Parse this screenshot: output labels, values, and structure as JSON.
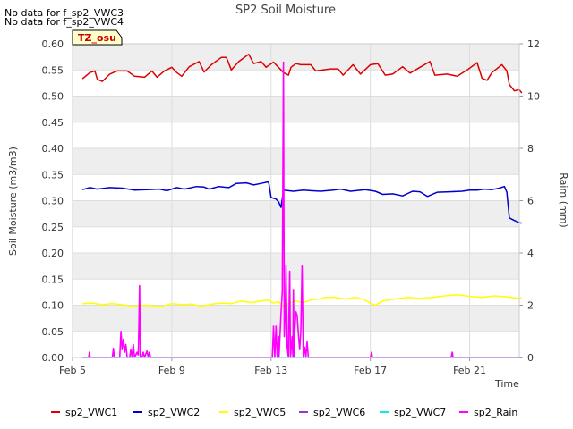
{
  "notes": [
    "No data for f_sp2_VWC3",
    "No data for f_sp2_VWC4"
  ],
  "badge": "TZ_osu",
  "chart_data": {
    "type": "line",
    "title": "SP2 Soil Moisture",
    "xlabel": "Time",
    "ylabel": "Soil Moisture (m3/m3)",
    "y2label": "Raim (mm)",
    "xlim": [
      5.0,
      23.0
    ],
    "ylim": [
      0.0,
      0.6
    ],
    "y2lim": [
      0,
      12
    ],
    "x_ticks": [
      {
        "x": 5.0,
        "label": "Feb 5"
      },
      {
        "x": 9.0,
        "label": "Feb 9"
      },
      {
        "x": 13.0,
        "label": "Feb 13"
      },
      {
        "x": 17.0,
        "label": "Feb 17"
      },
      {
        "x": 21.0,
        "label": "Feb 21"
      }
    ],
    "y_ticks": [
      "0.00",
      "0.05",
      "0.10",
      "0.15",
      "0.20",
      "0.25",
      "0.30",
      "0.35",
      "0.40",
      "0.45",
      "0.50",
      "0.55",
      "0.60"
    ],
    "y2_ticks": [
      "0",
      "2",
      "4",
      "6",
      "8",
      "10",
      "12"
    ],
    "grid": true,
    "legend_position": "bottom",
    "series": [
      {
        "name": "sp2_VWC1",
        "axis": "left",
        "color": "#dd0000",
        "points": [
          [
            5.4,
            0.533
          ],
          [
            5.7,
            0.545
          ],
          [
            5.9,
            0.548
          ],
          [
            6.0,
            0.532
          ],
          [
            6.2,
            0.528
          ],
          [
            6.5,
            0.542
          ],
          [
            6.8,
            0.548
          ],
          [
            7.2,
            0.548
          ],
          [
            7.5,
            0.538
          ],
          [
            7.9,
            0.536
          ],
          [
            8.2,
            0.548
          ],
          [
            8.4,
            0.536
          ],
          [
            8.7,
            0.548
          ],
          [
            9.0,
            0.555
          ],
          [
            9.2,
            0.545
          ],
          [
            9.4,
            0.538
          ],
          [
            9.7,
            0.556
          ],
          [
            10.1,
            0.566
          ],
          [
            10.3,
            0.546
          ],
          [
            10.6,
            0.56
          ],
          [
            11.0,
            0.574
          ],
          [
            11.2,
            0.574
          ],
          [
            11.4,
            0.55
          ],
          [
            11.7,
            0.566
          ],
          [
            12.1,
            0.58
          ],
          [
            12.3,
            0.562
          ],
          [
            12.6,
            0.566
          ],
          [
            12.8,
            0.555
          ],
          [
            13.1,
            0.565
          ],
          [
            13.5,
            0.545
          ],
          [
            13.7,
            0.54
          ],
          [
            13.8,
            0.555
          ],
          [
            14.0,
            0.562
          ],
          [
            14.2,
            0.56
          ],
          [
            14.6,
            0.56
          ],
          [
            14.8,
            0.548
          ],
          [
            15.4,
            0.552
          ],
          [
            15.7,
            0.552
          ],
          [
            15.9,
            0.54
          ],
          [
            16.3,
            0.56
          ],
          [
            16.6,
            0.542
          ],
          [
            17.0,
            0.56
          ],
          [
            17.3,
            0.562
          ],
          [
            17.6,
            0.54
          ],
          [
            17.9,
            0.542
          ],
          [
            18.3,
            0.556
          ],
          [
            18.6,
            0.544
          ],
          [
            19.0,
            0.555
          ],
          [
            19.4,
            0.566
          ],
          [
            19.6,
            0.54
          ],
          [
            20.1,
            0.542
          ],
          [
            20.5,
            0.538
          ],
          [
            20.9,
            0.55
          ],
          [
            21.3,
            0.564
          ],
          [
            21.5,
            0.534
          ],
          [
            21.7,
            0.53
          ],
          [
            21.9,
            0.545
          ],
          [
            22.3,
            0.56
          ],
          [
            22.5,
            0.548
          ],
          [
            22.6,
            0.522
          ],
          [
            22.8,
            0.51
          ],
          [
            23.0,
            0.512
          ],
          [
            23.1,
            0.506
          ]
        ]
      },
      {
        "name": "sp2_VWC2",
        "axis": "left",
        "color": "#0000cc",
        "points": [
          [
            5.4,
            0.321
          ],
          [
            5.7,
            0.325
          ],
          [
            6.0,
            0.322
          ],
          [
            6.5,
            0.325
          ],
          [
            7.0,
            0.324
          ],
          [
            7.5,
            0.32
          ],
          [
            8.0,
            0.321
          ],
          [
            8.5,
            0.322
          ],
          [
            8.8,
            0.319
          ],
          [
            9.2,
            0.325
          ],
          [
            9.5,
            0.322
          ],
          [
            10.0,
            0.327
          ],
          [
            10.3,
            0.326
          ],
          [
            10.5,
            0.322
          ],
          [
            10.9,
            0.327
          ],
          [
            11.3,
            0.325
          ],
          [
            11.6,
            0.333
          ],
          [
            12.0,
            0.334
          ],
          [
            12.3,
            0.33
          ],
          [
            12.6,
            0.333
          ],
          [
            12.9,
            0.336
          ],
          [
            13.0,
            0.306
          ],
          [
            13.2,
            0.303
          ],
          [
            13.3,
            0.298
          ],
          [
            13.4,
            0.287
          ],
          [
            13.5,
            0.32
          ],
          [
            13.9,
            0.318
          ],
          [
            14.3,
            0.32
          ],
          [
            14.6,
            0.319
          ],
          [
            15.0,
            0.318
          ],
          [
            15.5,
            0.32
          ],
          [
            15.8,
            0.322
          ],
          [
            16.2,
            0.318
          ],
          [
            16.8,
            0.321
          ],
          [
            17.2,
            0.318
          ],
          [
            17.5,
            0.312
          ],
          [
            17.9,
            0.313
          ],
          [
            18.3,
            0.309
          ],
          [
            18.7,
            0.318
          ],
          [
            19.0,
            0.317
          ],
          [
            19.3,
            0.308
          ],
          [
            19.7,
            0.316
          ],
          [
            20.2,
            0.317
          ],
          [
            20.7,
            0.318
          ],
          [
            21.0,
            0.32
          ],
          [
            21.3,
            0.32
          ],
          [
            21.6,
            0.322
          ],
          [
            21.9,
            0.321
          ],
          [
            22.2,
            0.324
          ],
          [
            22.4,
            0.327
          ],
          [
            22.5,
            0.316
          ],
          [
            22.6,
            0.267
          ],
          [
            22.8,
            0.262
          ],
          [
            23.0,
            0.258
          ],
          [
            23.1,
            0.257
          ]
        ]
      },
      {
        "name": "sp2_VWC5",
        "axis": "left",
        "color": "#ffff00",
        "points": [
          [
            5.4,
            0.103
          ],
          [
            5.8,
            0.104
          ],
          [
            6.2,
            0.101
          ],
          [
            6.6,
            0.103
          ],
          [
            7.0,
            0.101
          ],
          [
            7.4,
            0.098
          ],
          [
            7.8,
            0.1
          ],
          [
            8.2,
            0.099
          ],
          [
            8.6,
            0.098
          ],
          [
            9.0,
            0.103
          ],
          [
            9.4,
            0.101
          ],
          [
            9.8,
            0.102
          ],
          [
            10.2,
            0.098
          ],
          [
            10.6,
            0.102
          ],
          [
            11.0,
            0.104
          ],
          [
            11.4,
            0.103
          ],
          [
            11.8,
            0.108
          ],
          [
            12.2,
            0.105
          ],
          [
            12.6,
            0.108
          ],
          [
            12.9,
            0.11
          ],
          [
            13.1,
            0.104
          ],
          [
            13.3,
            0.107
          ],
          [
            13.5,
            0.095
          ],
          [
            13.7,
            0.104
          ],
          [
            14.0,
            0.108
          ],
          [
            14.3,
            0.105
          ],
          [
            14.6,
            0.11
          ],
          [
            14.9,
            0.112
          ],
          [
            15.2,
            0.115
          ],
          [
            15.6,
            0.115
          ],
          [
            16.0,
            0.112
          ],
          [
            16.4,
            0.115
          ],
          [
            16.7,
            0.112
          ],
          [
            17.0,
            0.104
          ],
          [
            17.2,
            0.1
          ],
          [
            17.5,
            0.108
          ],
          [
            18.0,
            0.112
          ],
          [
            18.5,
            0.115
          ],
          [
            19.0,
            0.113
          ],
          [
            19.5,
            0.115
          ],
          [
            20.0,
            0.118
          ],
          [
            20.5,
            0.12
          ],
          [
            21.0,
            0.117
          ],
          [
            21.5,
            0.115
          ],
          [
            22.0,
            0.118
          ],
          [
            22.5,
            0.116
          ],
          [
            23.0,
            0.113
          ],
          [
            23.1,
            0.114
          ]
        ]
      },
      {
        "name": "sp2_VWC6",
        "axis": "left",
        "color": "#9933cc",
        "points": []
      },
      {
        "name": "sp2_VWC7",
        "axis": "left",
        "color": "#00eeee",
        "points": [
          [
            5.4,
            0.0
          ],
          [
            23.1,
            0.0
          ]
        ]
      },
      {
        "name": "sp2_Rain",
        "axis": "right",
        "color": "#ff00ff",
        "points": [
          [
            5.4,
            0
          ],
          [
            5.65,
            0
          ],
          [
            5.68,
            0.2
          ],
          [
            5.71,
            0
          ],
          [
            6.3,
            0
          ],
          [
            6.6,
            0
          ],
          [
            6.65,
            0.35
          ],
          [
            6.68,
            0
          ],
          [
            6.9,
            0
          ],
          [
            6.95,
            1.0
          ],
          [
            7.0,
            0.3
          ],
          [
            7.05,
            0.7
          ],
          [
            7.1,
            0.2
          ],
          [
            7.15,
            0.5
          ],
          [
            7.2,
            0
          ],
          [
            7.3,
            0
          ],
          [
            7.35,
            0.3
          ],
          [
            7.4,
            0
          ],
          [
            7.45,
            0.5
          ],
          [
            7.5,
            0
          ],
          [
            7.6,
            0.2
          ],
          [
            7.65,
            0.1
          ],
          [
            7.7,
            2.75
          ],
          [
            7.73,
            0
          ],
          [
            7.8,
            0
          ],
          [
            7.85,
            0.2
          ],
          [
            7.9,
            0
          ],
          [
            8.0,
            0.25
          ],
          [
            8.05,
            0
          ],
          [
            8.1,
            0.2
          ],
          [
            8.15,
            0
          ],
          [
            13.05,
            0
          ],
          [
            13.1,
            1.2
          ],
          [
            13.15,
            0
          ],
          [
            13.2,
            1.2
          ],
          [
            13.25,
            0
          ],
          [
            13.3,
            0.8
          ],
          [
            13.32,
            0
          ],
          [
            13.4,
            1.7
          ],
          [
            13.45,
            2.5
          ],
          [
            13.5,
            11.3
          ],
          [
            13.53,
            0.8
          ],
          [
            13.58,
            2.0
          ],
          [
            13.6,
            3.55
          ],
          [
            13.65,
            0.4
          ],
          [
            13.7,
            0
          ],
          [
            13.72,
            1.5
          ],
          [
            13.75,
            3.3
          ],
          [
            13.78,
            0
          ],
          [
            13.85,
            0.8
          ],
          [
            13.88,
            0
          ],
          [
            13.9,
            2.6
          ],
          [
            13.93,
            0
          ],
          [
            13.95,
            1.0
          ],
          [
            14.0,
            1.75
          ],
          [
            14.05,
            1.6
          ],
          [
            14.1,
            0.9
          ],
          [
            14.15,
            0.3
          ],
          [
            14.2,
            1.0
          ],
          [
            14.25,
            3.5
          ],
          [
            14.3,
            0
          ],
          [
            14.35,
            0.4
          ],
          [
            14.4,
            0
          ],
          [
            14.45,
            0.6
          ],
          [
            14.5,
            0
          ],
          [
            17.0,
            0
          ],
          [
            17.05,
            0.2
          ],
          [
            17.08,
            0
          ],
          [
            20.25,
            0
          ],
          [
            20.3,
            0.2
          ],
          [
            20.33,
            0
          ],
          [
            23.1,
            0
          ]
        ]
      }
    ]
  }
}
